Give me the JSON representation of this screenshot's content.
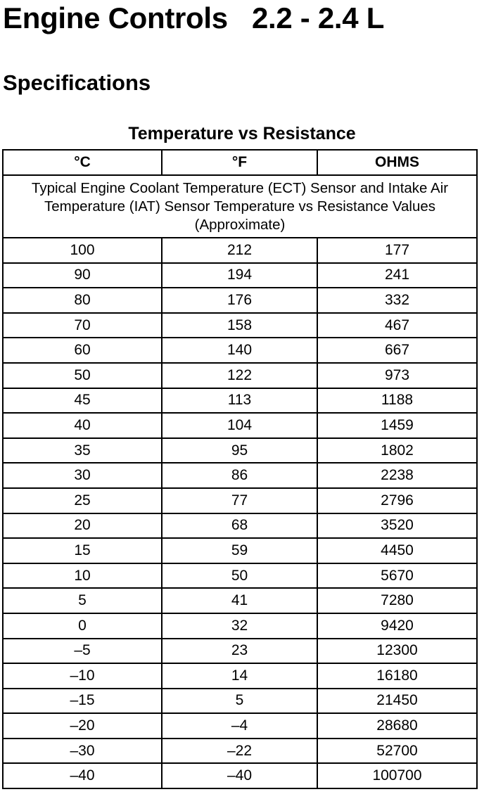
{
  "header": {
    "title": "Engine Controls   2.2 - 2.4 L",
    "section": "Specifications"
  },
  "table": {
    "title": "Temperature vs Resistance",
    "columns": [
      "°C",
      "°F",
      "OHMS"
    ],
    "description": "Typical Engine Coolant Temperature (ECT) Sensor and Intake Air Temperature (IAT) Sensor Temperature vs Resistance Values (Approximate)",
    "rows": [
      [
        "100",
        "212",
        "177"
      ],
      [
        "90",
        "194",
        "241"
      ],
      [
        "80",
        "176",
        "332"
      ],
      [
        "70",
        "158",
        "467"
      ],
      [
        "60",
        "140",
        "667"
      ],
      [
        "50",
        "122",
        "973"
      ],
      [
        "45",
        "113",
        "1188"
      ],
      [
        "40",
        "104",
        "1459"
      ],
      [
        "35",
        "95",
        "1802"
      ],
      [
        "30",
        "86",
        "2238"
      ],
      [
        "25",
        "77",
        "2796"
      ],
      [
        "20",
        "68",
        "3520"
      ],
      [
        "15",
        "59",
        "4450"
      ],
      [
        "10",
        "50",
        "5670"
      ],
      [
        "5",
        "41",
        "7280"
      ],
      [
        "0",
        "32",
        "9420"
      ],
      [
        "–5",
        "23",
        "12300"
      ],
      [
        "–10",
        "14",
        "16180"
      ],
      [
        "–15",
        "5",
        "21450"
      ],
      [
        "–20",
        "–4",
        "28680"
      ],
      [
        "–30",
        "–22",
        "52700"
      ],
      [
        "–40",
        "–40",
        "100700"
      ]
    ]
  }
}
